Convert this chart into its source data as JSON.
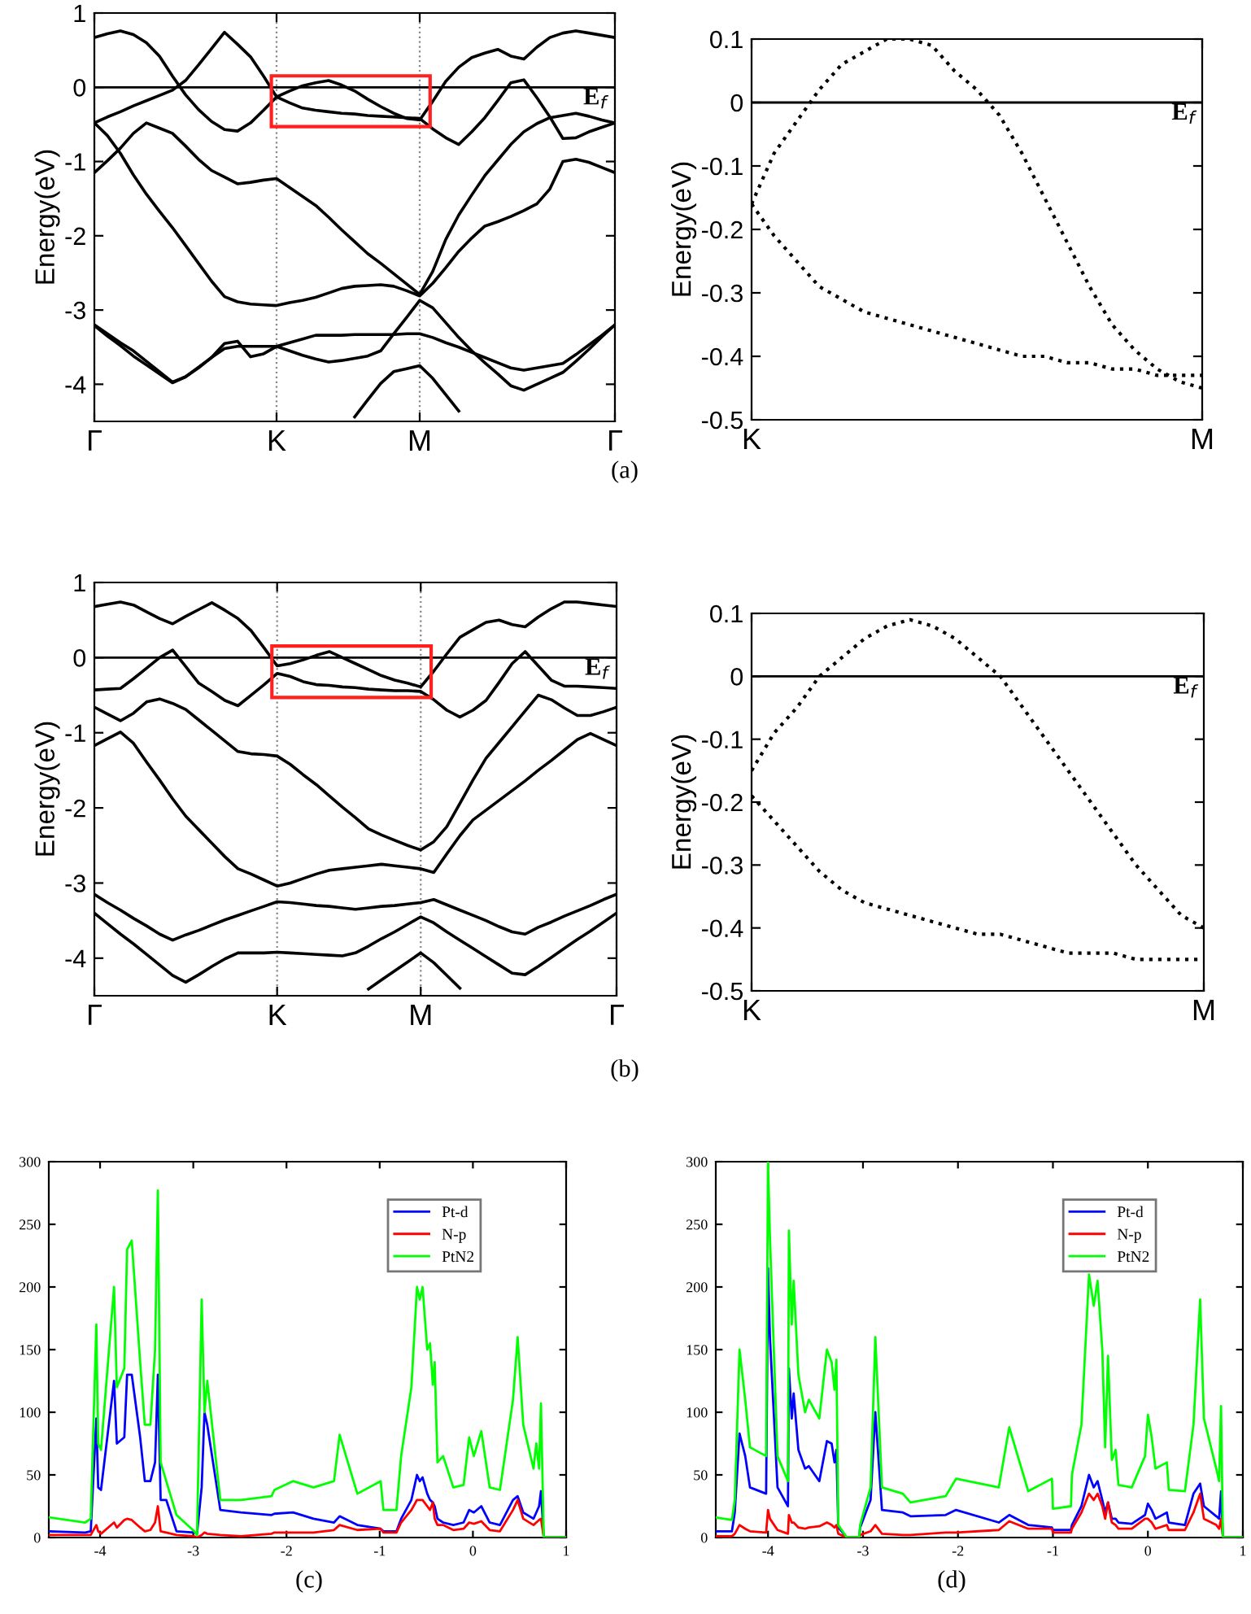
{
  "chart_data": [
    {
      "type": "line",
      "ylabel": "Energy(eV)",
      "ylim": [
        -4.5,
        1
      ],
      "yticks": [
        -4,
        -3,
        -2,
        -1,
        0,
        1
      ],
      "categories": [
        "Γ",
        null,
        null,
        null,
        null,
        null,
        null,
        null,
        null,
        null,
        null,
        null,
        null,
        null,
        "K",
        null,
        null,
        null,
        null,
        null,
        null,
        null,
        null,
        null,
        null,
        "M",
        null,
        null,
        null,
        null,
        null,
        null,
        null,
        null,
        null,
        null,
        null,
        null,
        null,
        null,
        "Γ"
      ],
      "grid": "x",
      "legend": false,
      "annotations": [
        "(a)"
      ],
      "ref_lines": [
        {
          "axis": "y",
          "value": 0,
          "label": "E$_{f}$",
          "color": "#000000"
        }
      ],
      "series": [
        {
          "color": "#000000",
          "values": [
            0.67,
            0.72,
            0.76,
            0.71,
            0.6,
            0.42,
            0.15,
            -0.1,
            -0.3,
            -0.46,
            -0.57,
            -0.59,
            -0.48,
            -0.31,
            -0.13,
            -0.05,
            0.02,
            0.06,
            0.09,
            0.03,
            -0.05,
            -0.16,
            -0.26,
            -0.35,
            -0.42,
            -0.44,
            -0.19,
            0.08,
            0.27,
            0.4,
            0.46,
            0.51,
            0.42,
            0.38,
            0.54,
            0.67,
            0.73,
            0.76,
            0.73,
            0.7,
            0.67
          ]
        },
        {
          "color": "#000000",
          "values": [
            -0.48,
            -0.4,
            -0.33,
            -0.25,
            -0.18,
            -0.11,
            -0.04,
            0.09,
            0.3,
            0.52,
            0.74,
            0.58,
            0.41,
            0.15,
            -0.13,
            -0.21,
            -0.28,
            -0.31,
            -0.33,
            -0.35,
            -0.36,
            -0.38,
            -0.39,
            -0.4,
            -0.41,
            -0.42,
            -0.56,
            -0.68,
            -0.77,
            -0.6,
            -0.41,
            -0.18,
            0.06,
            0.1,
            -0.14,
            -0.4,
            -0.69,
            -0.68,
            -0.6,
            -0.54,
            -0.48
          ]
        },
        {
          "color": "#000000",
          "values": [
            -1.15,
            -0.99,
            -0.82,
            -0.62,
            -0.48,
            -0.55,
            -0.62,
            -0.79,
            -0.97,
            -1.12,
            -1.21,
            -1.3,
            -1.28,
            -1.25,
            -1.23,
            -1.35,
            -1.47,
            -1.59,
            -1.75,
            -1.92,
            -2.08,
            -2.24,
            -2.37,
            -2.51,
            -2.65,
            -2.79,
            -2.48,
            -2.05,
            -1.72,
            -1.45,
            -1.19,
            -0.98,
            -0.77,
            -0.6,
            -0.49,
            -0.41,
            -0.38,
            -0.35,
            -0.39,
            -0.44,
            -0.48
          ]
        },
        {
          "color": "#000000",
          "values": [
            -0.48,
            -0.65,
            -0.89,
            -1.18,
            -1.44,
            -1.67,
            -1.89,
            -2.13,
            -2.37,
            -2.61,
            -2.82,
            -2.89,
            -2.92,
            -2.93,
            -2.94,
            -2.9,
            -2.87,
            -2.83,
            -2.77,
            -2.71,
            -2.68,
            -2.67,
            -2.66,
            -2.68,
            -2.74,
            -2.81,
            -2.64,
            -2.43,
            -2.21,
            -2.03,
            -1.87,
            -1.81,
            -1.74,
            -1.66,
            -1.57,
            -1.37,
            -1.0,
            -0.97,
            -1.01,
            -1.08,
            -1.15
          ]
        },
        {
          "color": "#000000",
          "values": [
            -3.2,
            -3.32,
            -3.44,
            -3.55,
            -3.69,
            -3.83,
            -3.97,
            -3.9,
            -3.77,
            -3.64,
            -3.52,
            -3.49,
            -3.49,
            -3.49,
            -3.49,
            -3.44,
            -3.39,
            -3.34,
            -3.34,
            -3.34,
            -3.33,
            -3.33,
            -3.33,
            -3.33,
            -3.32,
            -3.32,
            -3.37,
            -3.44,
            -3.5,
            -3.57,
            -3.64,
            -3.71,
            -3.78,
            -3.81,
            -3.78,
            -3.75,
            -3.72,
            -3.6,
            -3.47,
            -3.34,
            -3.2
          ]
        },
        {
          "color": "#000000",
          "values": [
            -3.21,
            -3.35,
            -3.48,
            -3.62,
            -3.74,
            -3.86,
            -3.98,
            -3.9,
            -3.78,
            -3.64,
            -3.45,
            -3.42,
            -3.63,
            -3.59,
            -3.49,
            -3.55,
            -3.61,
            -3.66,
            -3.7,
            -3.68,
            -3.65,
            -3.62,
            -3.55,
            -3.32,
            -3.1,
            -2.87,
            -2.97,
            -3.17,
            -3.37,
            -3.55,
            -3.71,
            -3.86,
            -4.02,
            -4.08,
            -4.0,
            -3.92,
            -3.84,
            -3.69,
            -3.53,
            -3.36,
            -3.2
          ]
        },
        {
          "color": "#000000",
          "values": [
            null,
            null,
            null,
            null,
            null,
            null,
            null,
            null,
            null,
            null,
            null,
            null,
            null,
            null,
            null,
            null,
            null,
            null,
            null,
            null,
            -4.44,
            -4.21,
            -3.99,
            -3.83,
            -3.79,
            -3.75,
            -3.92,
            -4.14,
            -4.36,
            null,
            null,
            null,
            null,
            null,
            null,
            null,
            null,
            null,
            null,
            null,
            null
          ]
        }
      ]
    },
    {
      "type": "line",
      "ylabel": "Energy(eV)",
      "ylim": [
        -0.5,
        0.1
      ],
      "yticks": [
        -0.5,
        -0.4,
        -0.3,
        -0.2,
        -0.1,
        0,
        0.1
      ],
      "categories": [
        "K",
        null,
        null,
        null,
        null,
        null,
        null,
        null,
        null,
        null,
        null,
        null,
        null,
        null,
        null,
        null,
        null,
        null,
        null,
        null,
        "M"
      ],
      "line_style": "dotted",
      "legend": false,
      "ref_lines": [
        {
          "axis": "y",
          "value": 0,
          "label": "E$_{f}$",
          "color": "#000000"
        }
      ],
      "series": [
        {
          "color": "#000000",
          "values": [
            -0.16,
            -0.08,
            -0.03,
            0.02,
            0.06,
            0.08,
            0.1,
            0.1,
            0.09,
            0.05,
            0.02,
            -0.02,
            -0.08,
            -0.15,
            -0.22,
            -0.29,
            -0.35,
            -0.39,
            -0.42,
            -0.44,
            -0.45
          ]
        },
        {
          "color": "#000000",
          "values": [
            -0.16,
            -0.21,
            -0.25,
            -0.29,
            -0.31,
            -0.33,
            -0.34,
            -0.35,
            -0.36,
            -0.37,
            -0.38,
            -0.39,
            -0.4,
            -0.4,
            -0.41,
            -0.41,
            -0.42,
            -0.42,
            -0.43,
            -0.43,
            -0.43
          ]
        }
      ]
    },
    {
      "type": "line",
      "ylabel": "Energy(eV)",
      "ylim": [
        -4.5,
        1
      ],
      "yticks": [
        -4,
        -3,
        -2,
        -1,
        0,
        1
      ],
      "categories": [
        "Γ",
        null,
        null,
        null,
        null,
        null,
        null,
        null,
        null,
        null,
        null,
        null,
        null,
        null,
        "K",
        null,
        null,
        null,
        null,
        null,
        null,
        null,
        null,
        null,
        null,
        "M",
        null,
        null,
        null,
        null,
        null,
        null,
        null,
        null,
        null,
        null,
        null,
        null,
        null,
        null,
        "Γ"
      ],
      "grid": "x",
      "legend": false,
      "annotations": [
        "(b)"
      ],
      "ref_lines": [
        {
          "axis": "y",
          "value": 0,
          "label": "E$_{f}$",
          "color": "#000000"
        }
      ],
      "series": [
        {
          "color": "#000000",
          "values": [
            0.68,
            0.71,
            0.74,
            0.7,
            0.61,
            0.52,
            0.45,
            0.55,
            0.64,
            0.73,
            0.63,
            0.52,
            0.36,
            0.13,
            -0.11,
            -0.08,
            -0.03,
            0.03,
            0.08,
            0.0,
            -0.08,
            -0.16,
            -0.24,
            -0.3,
            -0.34,
            -0.39,
            -0.18,
            0.05,
            0.27,
            0.37,
            0.47,
            0.5,
            0.44,
            0.41,
            0.54,
            0.65,
            0.74,
            0.74,
            0.72,
            0.7,
            0.68
          ]
        },
        {
          "color": "#000000",
          "values": [
            -0.43,
            -0.42,
            -0.41,
            -0.28,
            -0.14,
            0.0,
            0.1,
            -0.12,
            -0.34,
            -0.45,
            -0.57,
            -0.64,
            -0.5,
            -0.36,
            -0.21,
            -0.25,
            -0.32,
            -0.36,
            -0.37,
            -0.39,
            -0.4,
            -0.42,
            -0.43,
            -0.44,
            -0.44,
            -0.45,
            -0.56,
            -0.7,
            -0.79,
            -0.7,
            -0.57,
            -0.33,
            -0.08,
            0.08,
            -0.11,
            -0.3,
            -0.38,
            -0.38,
            -0.39,
            -0.4,
            -0.41
          ]
        },
        {
          "color": "#000000",
          "values": [
            -0.66,
            -0.75,
            -0.84,
            -0.74,
            -0.59,
            -0.55,
            -0.61,
            -0.69,
            -0.83,
            -0.97,
            -1.11,
            -1.25,
            -1.28,
            -1.29,
            -1.31,
            -1.42,
            -1.56,
            -1.69,
            -1.84,
            -1.99,
            -2.13,
            -2.28,
            -2.36,
            -2.43,
            -2.5,
            -2.56,
            -2.45,
            -2.25,
            -1.94,
            -1.63,
            -1.34,
            -1.13,
            -0.92,
            -0.71,
            -0.5,
            -0.56,
            -0.67,
            -0.77,
            -0.77,
            -0.72,
            -0.66
          ]
        },
        {
          "color": "#000000",
          "values": [
            -1.17,
            -1.08,
            -0.99,
            -1.14,
            -1.39,
            -1.63,
            -1.88,
            -2.11,
            -2.29,
            -2.47,
            -2.65,
            -2.81,
            -2.88,
            -2.96,
            -3.04,
            -3.0,
            -2.94,
            -2.88,
            -2.83,
            -2.81,
            -2.79,
            -2.77,
            -2.75,
            -2.77,
            -2.79,
            -2.81,
            -2.86,
            -2.61,
            -2.37,
            -2.16,
            -2.03,
            -1.9,
            -1.77,
            -1.64,
            -1.5,
            -1.37,
            -1.23,
            -1.09,
            -1.01,
            -1.09,
            -1.17
          ]
        },
        {
          "color": "#000000",
          "values": [
            -3.15,
            -3.26,
            -3.36,
            -3.47,
            -3.57,
            -3.68,
            -3.76,
            -3.69,
            -3.63,
            -3.56,
            -3.49,
            -3.43,
            -3.37,
            -3.31,
            -3.25,
            -3.26,
            -3.28,
            -3.3,
            -3.31,
            -3.33,
            -3.35,
            -3.33,
            -3.31,
            -3.3,
            -3.28,
            -3.26,
            -3.22,
            -3.29,
            -3.36,
            -3.43,
            -3.5,
            -3.58,
            -3.65,
            -3.68,
            -3.59,
            -3.52,
            -3.44,
            -3.37,
            -3.3,
            -3.22,
            -3.15
          ]
        },
        {
          "color": "#000000",
          "values": [
            -3.4,
            -3.54,
            -3.68,
            -3.81,
            -3.95,
            -4.09,
            -4.23,
            -4.32,
            -4.22,
            -4.11,
            -4.01,
            -3.93,
            -3.93,
            -3.93,
            -3.92,
            -3.93,
            -3.94,
            -3.95,
            -3.96,
            -3.97,
            -3.93,
            -3.84,
            -3.74,
            -3.65,
            -3.55,
            -3.45,
            -3.53,
            -3.65,
            -3.76,
            -3.87,
            -3.98,
            -4.09,
            -4.2,
            -4.22,
            -4.11,
            -3.99,
            -3.87,
            -3.75,
            -3.64,
            -3.52,
            -3.4
          ]
        },
        {
          "color": "#000000",
          "values": [
            null,
            null,
            null,
            null,
            null,
            null,
            null,
            null,
            null,
            null,
            null,
            null,
            null,
            null,
            null,
            null,
            null,
            null,
            null,
            null,
            null,
            -4.41,
            -4.29,
            -4.17,
            -4.05,
            -3.93,
            -4.06,
            -4.23,
            -4.4,
            null,
            null,
            null,
            null,
            null,
            null,
            null,
            null,
            null,
            null,
            null,
            null
          ]
        }
      ]
    },
    {
      "type": "line",
      "ylabel": "Energy(eV)",
      "ylim": [
        -0.5,
        0.1
      ],
      "yticks": [
        -0.5,
        -0.4,
        -0.3,
        -0.2,
        -0.1,
        0,
        0.1
      ],
      "categories": [
        "K",
        null,
        null,
        null,
        null,
        null,
        null,
        null,
        null,
        null,
        null,
        null,
        null,
        null,
        null,
        null,
        null,
        null,
        null,
        null,
        "M"
      ],
      "line_style": "dotted",
      "legend": false,
      "ref_lines": [
        {
          "axis": "y",
          "value": 0,
          "label": "E$_{f}$",
          "color": "#000000"
        }
      ],
      "series": [
        {
          "color": "#000000",
          "values": [
            -0.15,
            -0.09,
            -0.05,
            0.0,
            0.03,
            0.06,
            0.08,
            0.09,
            0.08,
            0.06,
            0.03,
            0.0,
            -0.05,
            -0.1,
            -0.15,
            -0.2,
            -0.25,
            -0.3,
            -0.34,
            -0.38,
            -0.4
          ]
        },
        {
          "color": "#000000",
          "values": [
            -0.19,
            -0.23,
            -0.27,
            -0.31,
            -0.34,
            -0.36,
            -0.37,
            -0.38,
            -0.39,
            -0.4,
            -0.41,
            -0.41,
            -0.42,
            -0.43,
            -0.44,
            -0.44,
            -0.44,
            -0.45,
            -0.45,
            -0.45,
            -0.45
          ]
        }
      ]
    },
    {
      "type": "line",
      "xlim": [
        -4.55,
        1
      ],
      "ylim": [
        0,
        300
      ],
      "xticks": [
        -4,
        -3,
        -2,
        -1,
        0,
        1
      ],
      "yticks": [
        0,
        50,
        100,
        150,
        200,
        250,
        300
      ],
      "legend": "top right",
      "annotations": [
        "(c)"
      ],
      "x": [
        -4.54,
        -4.16,
        -4.1,
        -4.04,
        -4.02,
        -3.99,
        -3.85,
        -3.82,
        -3.74,
        -3.71,
        -3.66,
        -3.57,
        -3.52,
        -3.46,
        -3.41,
        -3.38,
        -3.35,
        -3.29,
        -3.18,
        -2.99,
        -2.96,
        -2.91,
        -2.88,
        -2.85,
        -2.71,
        -2.49,
        -2.16,
        -2.13,
        -1.93,
        -1.71,
        -1.49,
        -1.43,
        -1.24,
        -0.99,
        -0.96,
        -0.82,
        -0.77,
        -0.66,
        -0.6,
        -0.57,
        -0.54,
        -0.49,
        -0.46,
        -0.43,
        -0.41,
        -0.38,
        -0.32,
        -0.21,
        -0.1,
        -0.04,
        0.01,
        0.09,
        0.18,
        0.29,
        0.43,
        0.48,
        0.54,
        0.65,
        0.68,
        0.71,
        0.73,
        0.76,
        1.0
      ],
      "series": [
        {
          "name": "Pt-d",
          "color": "#0000ff",
          "values": [
            5,
            4,
            5,
            95,
            40,
            38,
            125,
            75,
            80,
            130,
            130,
            80,
            45,
            45,
            60,
            130,
            30,
            30,
            5,
            4,
            3,
            40,
            100,
            90,
            22,
            20,
            18,
            19,
            20,
            15,
            12,
            17,
            10,
            7,
            5,
            5,
            15,
            30,
            50,
            45,
            48,
            35,
            30,
            28,
            25,
            15,
            12,
            10,
            12,
            22,
            20,
            25,
            12,
            10,
            30,
            33,
            20,
            15,
            20,
            25,
            37,
            0,
            0
          ]
        },
        {
          "name": "N-p",
          "color": "#ff0000",
          "values": [
            2,
            2,
            2,
            10,
            5,
            3,
            12,
            8,
            14,
            15,
            14,
            8,
            5,
            6,
            12,
            25,
            5,
            4,
            2,
            1,
            0,
            2,
            4,
            3,
            2,
            1,
            3,
            4,
            4,
            4,
            6,
            10,
            6,
            7,
            4,
            4,
            12,
            22,
            30,
            30,
            30,
            25,
            22,
            28,
            15,
            10,
            10,
            6,
            7,
            12,
            11,
            13,
            6,
            5,
            22,
            30,
            15,
            10,
            12,
            14,
            15,
            0,
            0
          ]
        },
        {
          "name": "PtN2",
          "color": "#00ff00",
          "values": [
            16,
            12,
            15,
            170,
            75,
            70,
            200,
            120,
            135,
            230,
            237,
            140,
            90,
            90,
            150,
            277,
            60,
            45,
            18,
            5,
            2,
            190,
            100,
            125,
            30,
            30,
            33,
            38,
            45,
            40,
            45,
            82,
            35,
            45,
            22,
            22,
            65,
            120,
            200,
            190,
            200,
            150,
            155,
            122,
            140,
            60,
            65,
            40,
            42,
            80,
            65,
            85,
            40,
            38,
            110,
            160,
            90,
            55,
            75,
            55,
            107,
            0,
            0
          ]
        }
      ]
    },
    {
      "type": "line",
      "xlim": [
        -4.55,
        1
      ],
      "ylim": [
        0,
        300
      ],
      "xticks": [
        -4,
        -3,
        -2,
        -1,
        0,
        1
      ],
      "yticks": [
        0,
        50,
        100,
        150,
        200,
        250,
        300
      ],
      "legend": "top right",
      "annotations": [
        "(d)"
      ],
      "x": [
        -4.55,
        -4.38,
        -4.35,
        -4.3,
        -4.24,
        -4.19,
        -4.02,
        -4.0,
        -3.98,
        -3.9,
        -3.79,
        -3.78,
        -3.75,
        -3.73,
        -3.68,
        -3.61,
        -3.57,
        -3.46,
        -3.38,
        -3.33,
        -3.3,
        -3.28,
        -3.26,
        -3.17,
        -3.04,
        -3.03,
        -2.92,
        -2.87,
        -2.8,
        -2.58,
        -2.5,
        -2.13,
        -2.02,
        -1.57,
        -1.46,
        -1.26,
        -1.01,
        -1.0,
        -0.81,
        -0.8,
        -0.7,
        -0.62,
        -0.57,
        -0.53,
        -0.48,
        -0.45,
        -0.42,
        -0.38,
        -0.34,
        -0.31,
        -0.17,
        -0.03,
        0.0,
        0.04,
        0.08,
        0.2,
        0.22,
        0.39,
        0.48,
        0.55,
        0.59,
        0.72,
        0.75,
        0.77,
        0.79,
        1.0
      ],
      "series": [
        {
          "name": "Pt-d",
          "color": "#0000ff",
          "values": [
            5,
            5,
            20,
            83,
            65,
            40,
            35,
            215,
            160,
            40,
            25,
            135,
            95,
            115,
            70,
            55,
            57,
            45,
            77,
            75,
            60,
            70,
            8,
            0,
            0,
            8,
            30,
            100,
            22,
            20,
            17,
            18,
            22,
            12,
            18,
            10,
            8,
            6,
            6,
            10,
            25,
            50,
            40,
            45,
            30,
            20,
            28,
            15,
            15,
            12,
            11,
            18,
            27,
            22,
            15,
            20,
            12,
            10,
            35,
            43,
            25,
            17,
            15,
            37,
            0,
            0
          ]
        },
        {
          "name": "N-p",
          "color": "#ff0000",
          "values": [
            1,
            1,
            3,
            10,
            7,
            5,
            4,
            22,
            15,
            6,
            3,
            18,
            12,
            12,
            8,
            7,
            8,
            9,
            12,
            10,
            8,
            10,
            3,
            0,
            0,
            2,
            5,
            10,
            3,
            2,
            2,
            4,
            4,
            6,
            13,
            7,
            7,
            4,
            4,
            7,
            20,
            35,
            30,
            35,
            25,
            15,
            28,
            12,
            10,
            7,
            7,
            15,
            15,
            12,
            7,
            10,
            6,
            6,
            20,
            35,
            15,
            10,
            7,
            15,
            0,
            0
          ]
        },
        {
          "name": "PtN2",
          "color": "#00ff00",
          "values": [
            16,
            14,
            30,
            150,
            110,
            72,
            65,
            300,
            240,
            65,
            45,
            245,
            170,
            205,
            130,
            100,
            110,
            95,
            150,
            140,
            118,
            142,
            10,
            0,
            0,
            10,
            40,
            160,
            40,
            35,
            28,
            33,
            47,
            40,
            88,
            37,
            47,
            23,
            25,
            50,
            90,
            210,
            185,
            205,
            150,
            72,
            145,
            62,
            70,
            42,
            40,
            65,
            98,
            80,
            55,
            60,
            38,
            37,
            90,
            190,
            95,
            55,
            45,
            105,
            0,
            0
          ]
        }
      ]
    }
  ]
}
